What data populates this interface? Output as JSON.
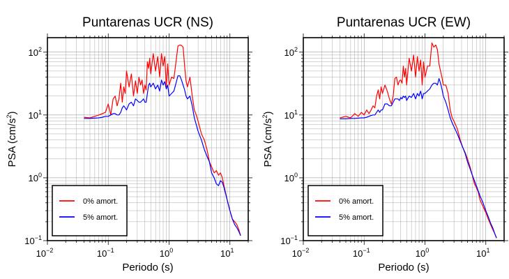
{
  "chart_data": [
    {
      "type": "line",
      "title": "Puntarenas UCR (NS)",
      "xlabel": "Periodo (s)",
      "ylabel": "PSA (cm/s²)",
      "ylabel_main": "PSA (cm/s",
      "ylabel_exp": "2",
      "ylabel_close": ")",
      "xscale": "log",
      "yscale": "log",
      "xlim": [
        0.01,
        20
      ],
      "ylim": [
        0.1,
        170
      ],
      "xticks": [
        {
          "base": "10",
          "exp": "−2",
          "value": 0.01
        },
        {
          "base": "10",
          "exp": "−1",
          "value": 0.1
        },
        {
          "base": "10",
          "exp": "0",
          "value": 1
        },
        {
          "base": "10",
          "exp": "1",
          "value": 10
        }
      ],
      "yticks": [
        {
          "base": "10",
          "exp": "−1",
          "value": 0.1
        },
        {
          "base": "10",
          "exp": "0",
          "value": 1
        },
        {
          "base": "10",
          "exp": "1",
          "value": 10
        },
        {
          "base": "10",
          "exp": "2",
          "value": 100
        }
      ],
      "grid": true,
      "legend": "bottom-left",
      "series": [
        {
          "name": "0% amort.",
          "color": "#ff0000",
          "x": [
            0.04,
            0.05,
            0.06,
            0.07,
            0.08,
            0.09,
            0.1,
            0.11,
            0.12,
            0.13,
            0.14,
            0.15,
            0.16,
            0.17,
            0.18,
            0.19,
            0.2,
            0.22,
            0.24,
            0.26,
            0.28,
            0.3,
            0.32,
            0.34,
            0.36,
            0.38,
            0.4,
            0.42,
            0.44,
            0.46,
            0.48,
            0.5,
            0.55,
            0.6,
            0.65,
            0.7,
            0.75,
            0.8,
            0.85,
            0.9,
            0.95,
            1.0,
            1.1,
            1.2,
            1.3,
            1.4,
            1.5,
            1.6,
            1.7,
            1.8,
            1.9,
            2.0,
            2.2,
            2.4,
            2.6,
            2.8,
            3.0,
            3.4,
            3.8,
            4.2,
            4.6,
            5.0,
            5.5,
            6.0,
            6.5,
            7.0,
            7.5,
            8.0,
            9.0,
            10.0,
            11.0,
            12.0,
            13.0,
            14.0,
            15.0
          ],
          "y": [
            9.2,
            9.0,
            9.5,
            10.0,
            10.5,
            11.0,
            15.0,
            10.0,
            18.0,
            20.0,
            14.0,
            18.0,
            32.0,
            16.0,
            28.0,
            22.0,
            50.0,
            28.0,
            45.0,
            20.0,
            35.0,
            22.0,
            40.0,
            30.0,
            36.0,
            22.0,
            30.0,
            25.0,
            70.0,
            55.0,
            80.0,
            45.0,
            95.0,
            50.0,
            85.0,
            40.0,
            95.0,
            60.0,
            85.0,
            28.0,
            65.0,
            30.0,
            40.0,
            38.0,
            70.0,
            125.0,
            130.0,
            128.0,
            120.0,
            60.0,
            35.0,
            28.0,
            40.0,
            20.0,
            12.0,
            10.0,
            8.0,
            5.0,
            4.0,
            2.8,
            1.8,
            1.5,
            1.2,
            1.3,
            1.1,
            1.2,
            1.0,
            0.75,
            0.45,
            0.3,
            0.22,
            0.2,
            0.18,
            0.15,
            0.12
          ]
        },
        {
          "name": "5% amort.",
          "color": "#0000ff",
          "x": [
            0.04,
            0.05,
            0.06,
            0.07,
            0.08,
            0.09,
            0.1,
            0.11,
            0.12,
            0.13,
            0.14,
            0.15,
            0.16,
            0.17,
            0.18,
            0.19,
            0.2,
            0.22,
            0.24,
            0.26,
            0.28,
            0.3,
            0.32,
            0.34,
            0.36,
            0.38,
            0.4,
            0.42,
            0.44,
            0.46,
            0.48,
            0.5,
            0.55,
            0.6,
            0.65,
            0.7,
            0.75,
            0.8,
            0.85,
            0.9,
            0.95,
            1.0,
            1.1,
            1.2,
            1.3,
            1.4,
            1.5,
            1.6,
            1.7,
            1.8,
            1.9,
            2.0,
            2.2,
            2.4,
            2.6,
            2.8,
            3.0,
            3.4,
            3.8,
            4.2,
            4.6,
            5.0,
            5.5,
            6.0,
            6.5,
            7.0,
            7.5,
            8.0,
            9.0,
            10.0,
            11.0,
            12.0,
            13.0,
            14.0,
            15.0
          ],
          "y": [
            8.8,
            8.8,
            8.9,
            9.0,
            9.2,
            9.5,
            9.5,
            10.0,
            10.5,
            10.5,
            10.0,
            10.0,
            11.0,
            13.0,
            14.0,
            13.0,
            12.0,
            15.0,
            16.0,
            14.0,
            18.0,
            17.0,
            16.0,
            16.0,
            17.0,
            18.0,
            16.0,
            16.0,
            22.0,
            30.0,
            32.0,
            28.0,
            32.0,
            26.0,
            30.0,
            24.0,
            36.0,
            30.0,
            34.0,
            26.0,
            30.0,
            20.0,
            22.0,
            24.0,
            32.0,
            42.0,
            42.0,
            36.0,
            30.0,
            25.0,
            20.0,
            18.0,
            20.0,
            14.0,
            9.0,
            7.0,
            5.5,
            4.0,
            2.8,
            2.2,
            1.8,
            1.2,
            1.0,
            0.8,
            0.75,
            0.9,
            0.85,
            0.7,
            0.45,
            0.3,
            0.22,
            0.18,
            0.16,
            0.14,
            0.12
          ]
        }
      ]
    },
    {
      "type": "line",
      "title": "Puntarenas UCR (EW)",
      "xlabel": "Periodo (s)",
      "ylabel": "PSA (cm/s²)",
      "ylabel_main": "PSA (cm/s",
      "ylabel_exp": "2",
      "ylabel_close": ")",
      "xscale": "log",
      "yscale": "log",
      "xlim": [
        0.01,
        20
      ],
      "ylim": [
        0.1,
        170
      ],
      "xticks": [
        {
          "base": "10",
          "exp": "−2",
          "value": 0.01
        },
        {
          "base": "10",
          "exp": "−1",
          "value": 0.1
        },
        {
          "base": "10",
          "exp": "0",
          "value": 1
        },
        {
          "base": "10",
          "exp": "1",
          "value": 10
        }
      ],
      "yticks": [
        {
          "base": "10",
          "exp": "−1",
          "value": 0.1
        },
        {
          "base": "10",
          "exp": "0",
          "value": 1
        },
        {
          "base": "10",
          "exp": "1",
          "value": 10
        },
        {
          "base": "10",
          "exp": "2",
          "value": 100
        }
      ],
      "grid": true,
      "legend": "bottom-left",
      "series": [
        {
          "name": "0% amort.",
          "color": "#ff0000",
          "x": [
            0.04,
            0.05,
            0.06,
            0.07,
            0.08,
            0.09,
            0.1,
            0.11,
            0.12,
            0.13,
            0.14,
            0.15,
            0.16,
            0.17,
            0.18,
            0.19,
            0.2,
            0.22,
            0.24,
            0.26,
            0.28,
            0.3,
            0.32,
            0.34,
            0.36,
            0.38,
            0.4,
            0.42,
            0.44,
            0.46,
            0.48,
            0.5,
            0.55,
            0.6,
            0.65,
            0.7,
            0.75,
            0.8,
            0.85,
            0.9,
            0.95,
            1.0,
            1.1,
            1.2,
            1.3,
            1.4,
            1.5,
            1.6,
            1.7,
            1.8,
            1.9,
            2.0,
            2.2,
            2.4,
            2.6,
            2.8,
            3.0,
            3.4,
            3.8,
            4.2,
            4.6,
            5.0,
            5.5,
            6.0,
            6.5,
            7.0,
            7.5,
            8.0,
            9.0,
            10.0,
            11.0,
            12.0,
            13.0,
            14.0,
            15.0
          ],
          "y": [
            9.0,
            9.5,
            9.0,
            10.5,
            9.5,
            11.0,
            10.0,
            12.0,
            10.5,
            12.0,
            14.0,
            13.0,
            20.0,
            25.0,
            18.0,
            28.0,
            22.0,
            30.0,
            24.0,
            18.0,
            15.0,
            20.0,
            38.0,
            40.0,
            30.0,
            35.0,
            36.0,
            32.0,
            60.0,
            40.0,
            55.0,
            30.0,
            80.0,
            50.0,
            90.0,
            40.0,
            85.0,
            50.0,
            75.0,
            30.0,
            70.0,
            40.0,
            60.0,
            60.0,
            140.0,
            120.0,
            130.0,
            110.0,
            65.0,
            50.0,
            40.0,
            30.0,
            30.0,
            22.0,
            12.0,
            9.0,
            8.0,
            6.0,
            4.0,
            3.0,
            2.5,
            2.0,
            1.5,
            1.1,
            0.8,
            0.7,
            0.6,
            0.45,
            0.35,
            0.28,
            0.22,
            0.18,
            0.15,
            0.13,
            0.11
          ]
        },
        {
          "name": "5% amort.",
          "color": "#0000ff",
          "x": [
            0.04,
            0.05,
            0.06,
            0.07,
            0.08,
            0.09,
            0.1,
            0.11,
            0.12,
            0.13,
            0.14,
            0.15,
            0.16,
            0.17,
            0.18,
            0.19,
            0.2,
            0.22,
            0.24,
            0.26,
            0.28,
            0.3,
            0.32,
            0.34,
            0.36,
            0.38,
            0.4,
            0.42,
            0.44,
            0.46,
            0.48,
            0.5,
            0.55,
            0.6,
            0.65,
            0.7,
            0.75,
            0.8,
            0.85,
            0.9,
            0.95,
            1.0,
            1.1,
            1.2,
            1.3,
            1.4,
            1.5,
            1.6,
            1.7,
            1.8,
            1.9,
            2.0,
            2.2,
            2.4,
            2.6,
            2.8,
            3.0,
            3.4,
            3.8,
            4.2,
            4.6,
            5.0,
            5.5,
            6.0,
            6.5,
            7.0,
            7.5,
            8.0,
            9.0,
            10.0,
            11.0,
            12.0,
            13.0,
            14.0,
            15.0
          ],
          "y": [
            8.7,
            8.7,
            8.8,
            8.8,
            8.9,
            9.0,
            9.0,
            9.2,
            9.5,
            9.8,
            10.0,
            10.0,
            11.0,
            12.0,
            11.0,
            12.0,
            12.0,
            15.0,
            15.0,
            14.0,
            14.0,
            16.0,
            18.0,
            18.0,
            18.0,
            17.0,
            19.0,
            18.0,
            20.0,
            19.0,
            20.0,
            17.0,
            20.0,
            19.0,
            22.0,
            18.0,
            22.0,
            20.0,
            24.0,
            18.0,
            22.0,
            22.0,
            24.0,
            26.0,
            30.0,
            32.0,
            32.0,
            30.0,
            38.0,
            32.0,
            26.0,
            20.0,
            16.0,
            12.0,
            9.0,
            7.5,
            6.5,
            5.0,
            3.8,
            3.0,
            2.4,
            1.8,
            1.4,
            1.1,
            0.9,
            0.75,
            0.62,
            0.52,
            0.4,
            0.3,
            0.24,
            0.19,
            0.16,
            0.13,
            0.11
          ]
        }
      ]
    }
  ]
}
